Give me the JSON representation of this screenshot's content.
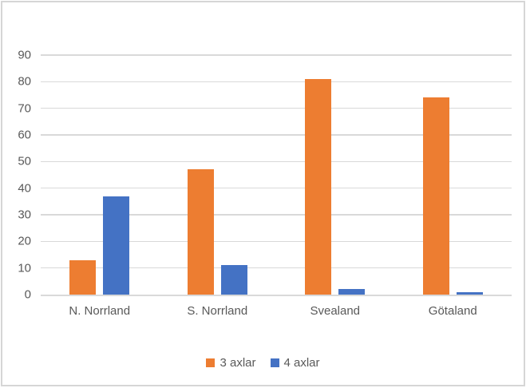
{
  "colors": {
    "series_3_axlar": "#ED7D31",
    "series_4_axlar": "#4472C4",
    "gridline": "#D9D9D9",
    "axis_line": "#D9D9D9",
    "text": "#595959",
    "frame_border": "#D6D6D6",
    "background": "#FFFFFF"
  },
  "chart_data": {
    "type": "bar",
    "title": "",
    "categories": [
      "N. Norrland",
      "S. Norrland",
      "Svealand",
      "Götaland"
    ],
    "series": [
      {
        "name": "3 axlar",
        "color": "#ED7D31",
        "values": [
          13,
          47,
          81,
          74
        ]
      },
      {
        "name": "4 axlar",
        "color": "#4472C4",
        "values": [
          37,
          11,
          2,
          1
        ]
      }
    ],
    "xlabel": "",
    "ylabel": "",
    "ylim": [
      0,
      90
    ],
    "ytick_step": 10,
    "yticks": [
      0,
      10,
      20,
      30,
      40,
      50,
      60,
      70,
      80,
      90
    ],
    "grid": true,
    "legend_position": "bottom-center"
  }
}
